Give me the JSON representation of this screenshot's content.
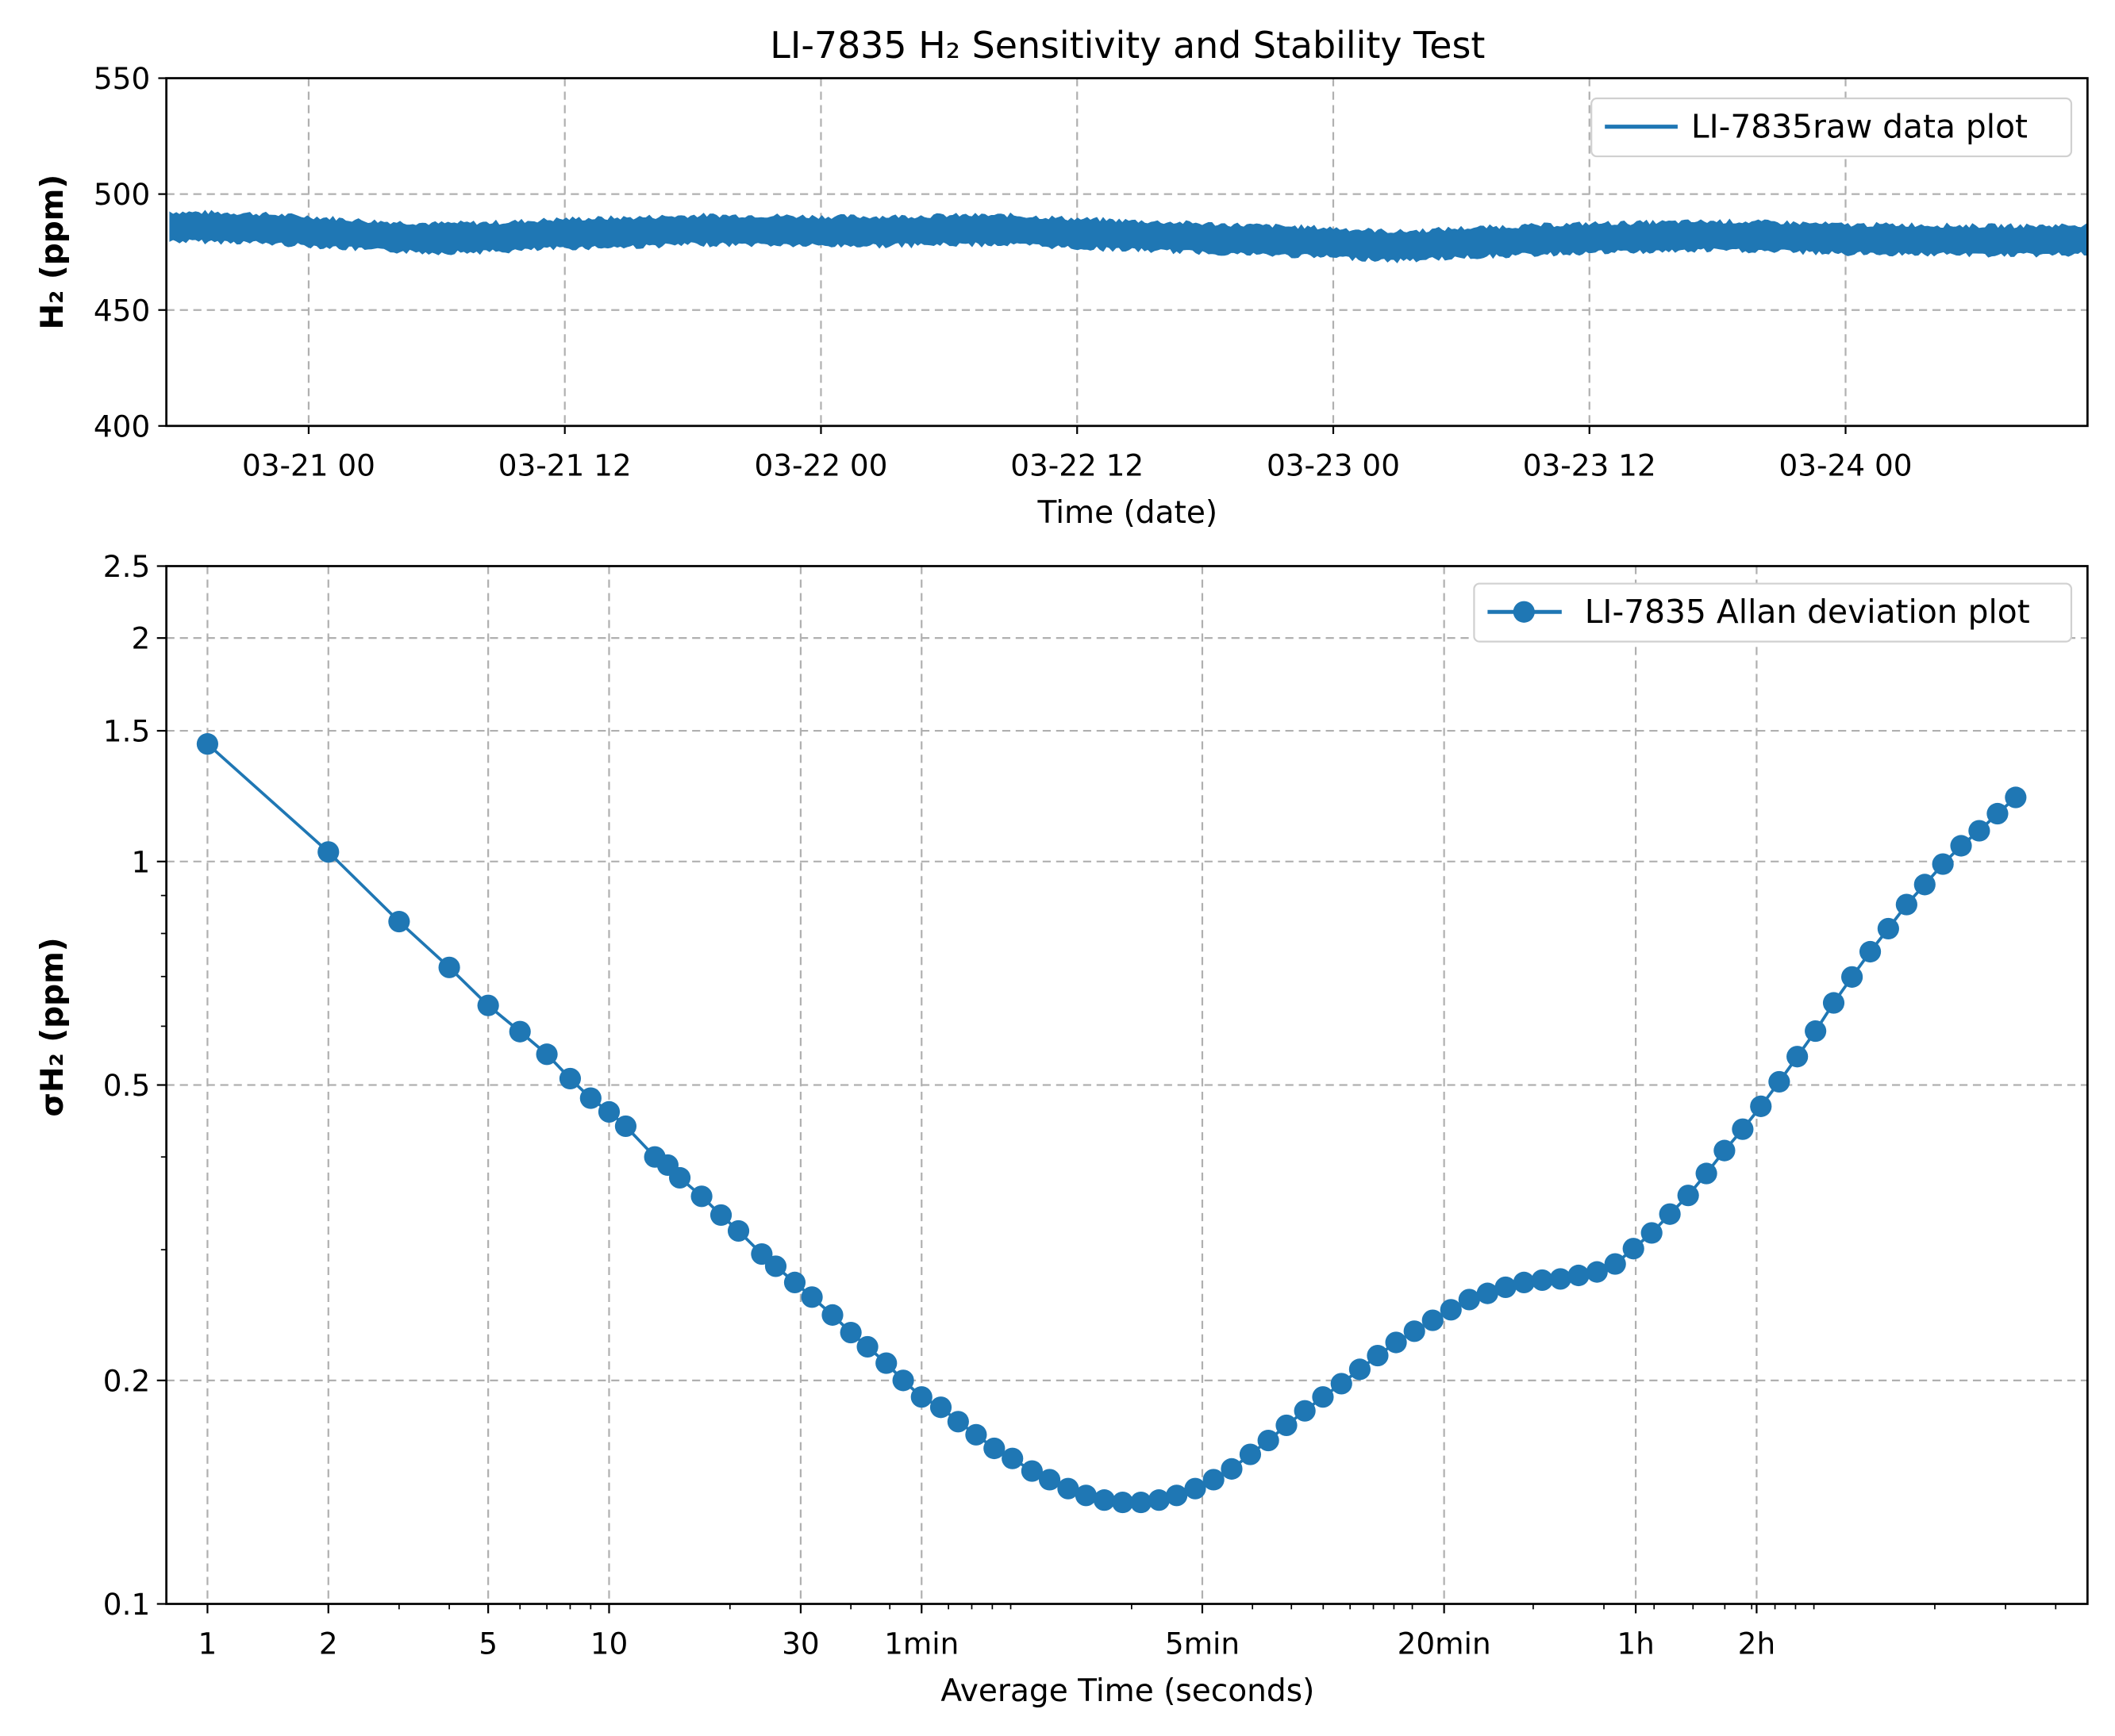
{
  "title": "LI-7835 H₂ Sensitivity and Stability Test",
  "colors": {
    "series": "#1f77b4",
    "grid": "#b0b0b0",
    "axes": "#000000"
  },
  "chart_data": [
    {
      "type": "line",
      "title": "LI-7835 H₂ Sensitivity and Stability Test",
      "xlabel": "Time (date)",
      "ylabel": "H₂ (ppm)",
      "xlim": [
        "03-20 17:20",
        "03-24 11:20"
      ],
      "ylim": [
        400,
        550
      ],
      "yticks": [
        400,
        450,
        500,
        550
      ],
      "xticks": [
        "03-21 00",
        "03-21 12",
        "03-22 00",
        "03-22 12",
        "03-23 00",
        "03-23 12",
        "03-24 00"
      ],
      "grid": true,
      "legend_position": "top-right",
      "series": [
        {
          "name": "LI-7835raw data plot",
          "noise_band_ppm": 10,
          "x": [
            "03-20 17:30",
            "03-20 21:00",
            "03-21 00:00",
            "03-21 03:00",
            "03-21 06:00",
            "03-21 09:00",
            "03-21 12:00",
            "03-21 15:00",
            "03-21 18:00",
            "03-21 21:00",
            "03-22 00:00",
            "03-22 03:00",
            "03-22 06:00",
            "03-22 09:00",
            "03-22 12:00",
            "03-22 15:00",
            "03-22 18:00",
            "03-22 21:00",
            "03-23 00:00",
            "03-23 03:00",
            "03-23 06:00",
            "03-23 09:00",
            "03-23 12:00",
            "03-23 15:00",
            "03-23 18:00",
            "03-23 21:00",
            "03-24 00:00",
            "03-24 03:00",
            "03-24 06:00",
            "03-24 09:00",
            "03-24 11:20"
          ],
          "y": [
            486,
            485.5,
            484,
            482,
            481,
            481.5,
            483,
            483.5,
            484.5,
            484.5,
            484,
            484,
            484.5,
            484.5,
            483,
            482,
            481,
            480,
            479,
            477.5,
            479,
            480,
            481,
            481.5,
            482,
            481.5,
            480.5,
            480.5,
            480,
            480,
            480.5
          ]
        }
      ]
    },
    {
      "type": "line",
      "xlabel": "Average Time (seconds)",
      "ylabel": "σH₂ (ppm)",
      "xscale": "log",
      "yscale": "log",
      "xlim": [
        0.79,
        48000
      ],
      "ylim": [
        0.1,
        2.5
      ],
      "yticks": [
        {
          "v": 0.1,
          "label": "0.1"
        },
        {
          "v": 0.2,
          "label": "0.2"
        },
        {
          "v": 0.5,
          "label": "0.5"
        },
        {
          "v": 1,
          "label": "1"
        },
        {
          "v": 1.5,
          "label": "1.5"
        },
        {
          "v": 2,
          "label": "2"
        },
        {
          "v": 2.5,
          "label": "2.5"
        }
      ],
      "xticks": [
        {
          "v": 1,
          "label": "1"
        },
        {
          "v": 2,
          "label": "2"
        },
        {
          "v": 5,
          "label": "5"
        },
        {
          "v": 10,
          "label": "10"
        },
        {
          "v": 30,
          "label": "30"
        },
        {
          "v": 60,
          "label": "1min"
        },
        {
          "v": 300,
          "label": "5min"
        },
        {
          "v": 1200,
          "label": "20min"
        },
        {
          "v": 3600,
          "label": "1h"
        },
        {
          "v": 7200,
          "label": "2h"
        }
      ],
      "grid": true,
      "legend_position": "top-right",
      "series": [
        {
          "name": "LI-7835 Allan deviation plot",
          "marker": "circle",
          "x": [
            1,
            2,
            3,
            4,
            5,
            6,
            7,
            8,
            9,
            10,
            11,
            13,
            14,
            15,
            17,
            19,
            21,
            24,
            26,
            29,
            32,
            36,
            40,
            44,
            49,
            54,
            60,
            67,
            74,
            82,
            91,
            101,
            113,
            125,
            139,
            154,
            171,
            190,
            211,
            234,
            259,
            288,
            320,
            355,
            395,
            438,
            486,
            540,
            599,
            666,
            740,
            820,
            911,
            1012,
            1124,
            1248,
            1386,
            1539,
            1707,
            1897,
            2106,
            2338,
            2594,
            2883,
            3200,
            3553,
            3945,
            4379,
            4863,
            5398,
            5988,
            6648,
            7378,
            8195,
            9090,
            10093,
            11200,
            12440,
            13810,
            15320,
            17010,
            18880,
            20950,
            23250,
            25800,
            28650,
            31800
          ],
          "y": [
            1.44,
            1.03,
            0.83,
            0.72,
            0.64,
            0.59,
            0.55,
            0.51,
            0.48,
            0.46,
            0.44,
            0.4,
            0.39,
            0.375,
            0.354,
            0.334,
            0.318,
            0.296,
            0.285,
            0.271,
            0.259,
            0.245,
            0.232,
            0.222,
            0.211,
            0.2,
            0.19,
            0.184,
            0.176,
            0.169,
            0.162,
            0.157,
            0.151,
            0.147,
            0.143,
            0.14,
            0.138,
            0.137,
            0.137,
            0.138,
            0.14,
            0.143,
            0.147,
            0.152,
            0.159,
            0.166,
            0.174,
            0.182,
            0.19,
            0.198,
            0.207,
            0.216,
            0.225,
            0.233,
            0.241,
            0.249,
            0.257,
            0.262,
            0.267,
            0.271,
            0.273,
            0.274,
            0.277,
            0.28,
            0.287,
            0.301,
            0.316,
            0.335,
            0.355,
            0.38,
            0.408,
            0.436,
            0.468,
            0.505,
            0.546,
            0.591,
            0.645,
            0.699,
            0.756,
            0.812,
            0.875,
            0.931,
            0.992,
            1.05,
            1.1,
            1.16,
            1.22
          ]
        }
      ]
    }
  ]
}
